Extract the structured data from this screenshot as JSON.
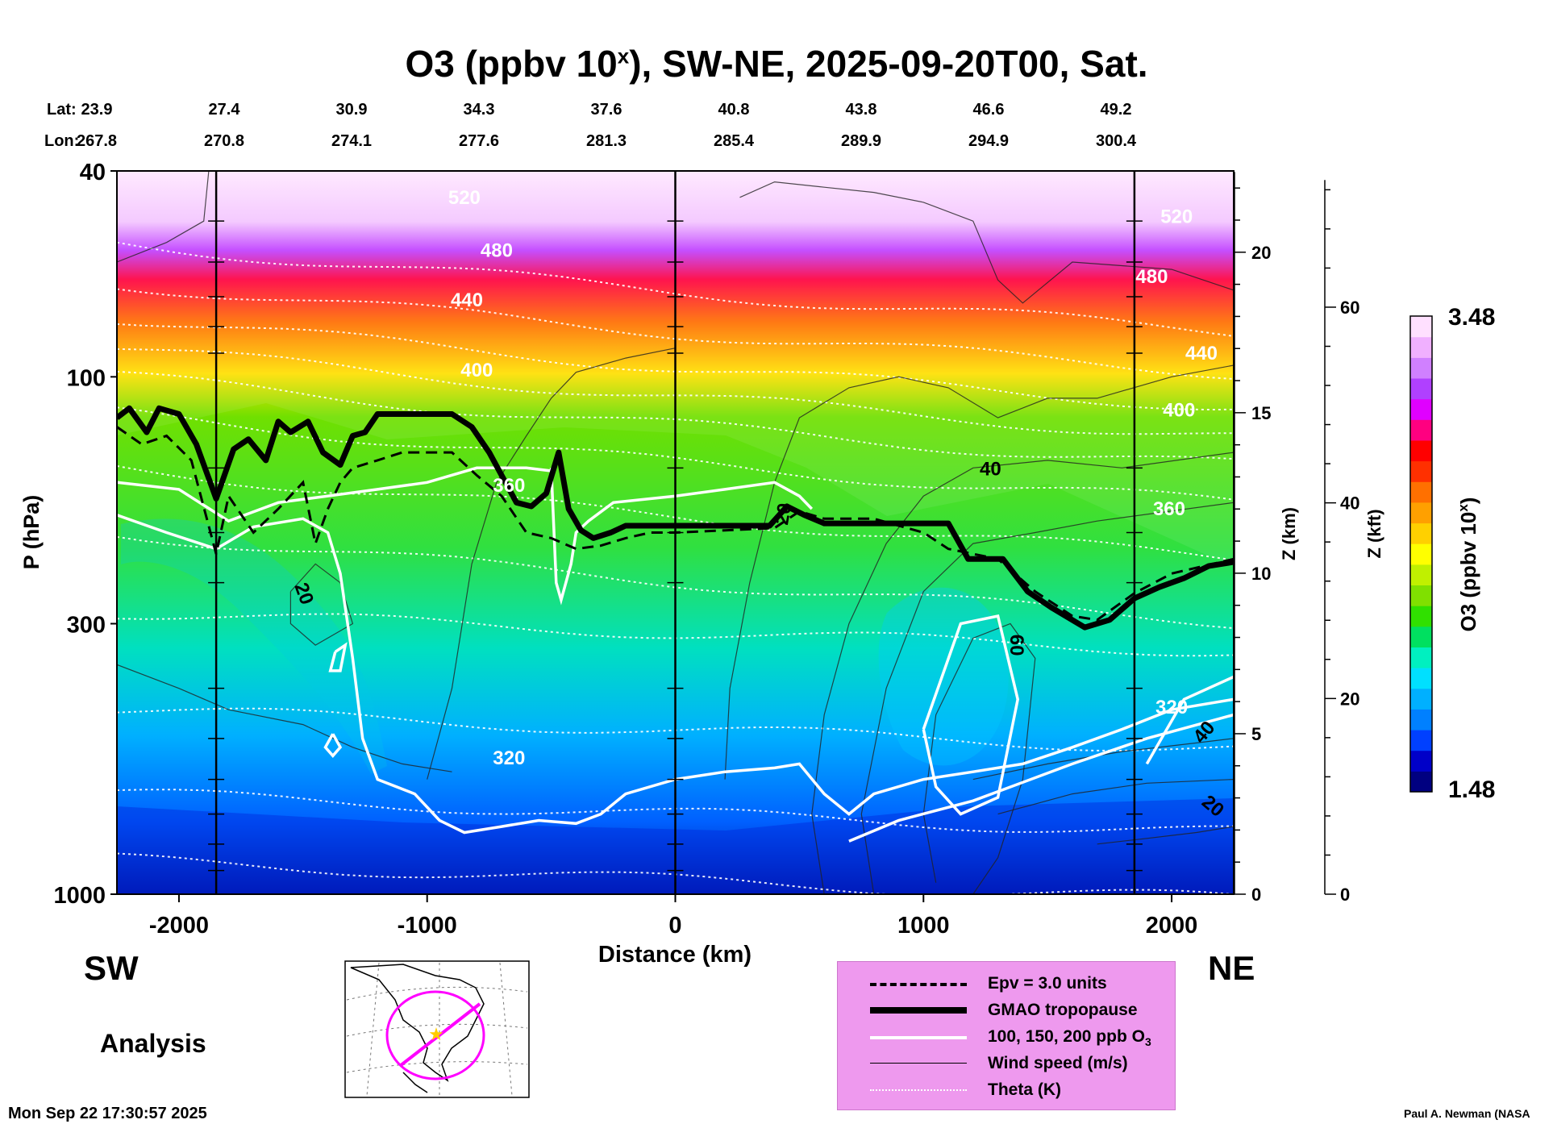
{
  "title": {
    "text": "O3 (ppbv 10",
    "sup": "x",
    "rest": "), SW-NE, 2025-09-20T00, Sat."
  },
  "lat_label": "Lat:",
  "lon_label": "Lon:",
  "lats": [
    "23.9",
    "27.4",
    "30.9",
    "34.3",
    "37.6",
    "40.8",
    "43.8",
    "46.6",
    "49.2"
  ],
  "lons": [
    "267.8",
    "270.8",
    "274.1",
    "277.6",
    "281.3",
    "285.4",
    "289.9",
    "294.9",
    "300.4"
  ],
  "directions": {
    "left": "SW",
    "right": "NE"
  },
  "analysis_label": "Analysis",
  "timestamp": "Mon Sep 22 17:30:57 2025",
  "credit": "Paul A. Newman (NASA",
  "colorbar": {
    "top": "3.48",
    "bottom": "1.48",
    "label": "O3 (ppbv 10",
    "label_sup": "x",
    "label_end": ")",
    "colors": [
      "#000080",
      "#0000c8",
      "#0040ff",
      "#0080ff",
      "#00b0ff",
      "#00e0ff",
      "#00f0c0",
      "#00e060",
      "#30e000",
      "#80e000",
      "#c0f000",
      "#ffff00",
      "#ffd000",
      "#ffa000",
      "#ff7000",
      "#ff3000",
      "#ff0000",
      "#ff0080",
      "#e000ff",
      "#b040ff",
      "#d080ff",
      "#f0b0ff",
      "#ffe0ff"
    ]
  },
  "legend": [
    {
      "style": "dashed",
      "text": "Epv = 3.0 units"
    },
    {
      "style": "thick",
      "text": "GMAO tropopause"
    },
    {
      "style": "white",
      "text": "100, 150, 200 ppb O",
      "sub": "3"
    },
    {
      "style": "thin",
      "text": "Wind speed (m/s)"
    },
    {
      "style": "dotted",
      "text": "Theta (K)"
    }
  ],
  "chart_data": {
    "type": "heatmap",
    "title": "O3 (ppbv 10^x), SW-NE, 2025-09-20T00, Sat.",
    "xlabel": "Distance (km)",
    "ylabel": "P (hPa)",
    "y2label": "Z (km)",
    "y3label": "Z (kft)",
    "colorbar_label": "O3 (ppbv 10^x)",
    "xlim": [
      -2250,
      2250
    ],
    "ylim": [
      1000,
      40
    ],
    "y_scale": "log",
    "x_ticks": [
      -2000,
      -1000,
      0,
      1000,
      2000
    ],
    "y_ticks": [
      40,
      100,
      300,
      1000
    ],
    "z_km_ticks": [
      0,
      5,
      10,
      15,
      20
    ],
    "z_kft_ticks": [
      0,
      20,
      40,
      60
    ],
    "colorbar_range": [
      1.48,
      3.48
    ],
    "vertical_lines_km": [
      -1850,
      0,
      1850
    ],
    "theta_labels": [
      {
        "text": "520",
        "x": -850,
        "p": 45
      },
      {
        "text": "480",
        "x": -720,
        "p": 57
      },
      {
        "text": "440",
        "x": -840,
        "p": 71
      },
      {
        "text": "400",
        "x": -800,
        "p": 97
      },
      {
        "text": "360",
        "x": -670,
        "p": 162
      },
      {
        "text": "320",
        "x": -670,
        "p": 545
      },
      {
        "text": "520",
        "x": 2020,
        "p": 49
      },
      {
        "text": "480",
        "x": 1920,
        "p": 64
      },
      {
        "text": "440",
        "x": 2120,
        "p": 90
      },
      {
        "text": "400",
        "x": 2030,
        "p": 116
      },
      {
        "text": "360",
        "x": 1990,
        "p": 180
      },
      {
        "text": "320",
        "x": 2000,
        "p": 435
      }
    ],
    "wind_labels": [
      {
        "text": "20",
        "x": -1520,
        "p": 265
      },
      {
        "text": "40",
        "x": 1270,
        "p": 155
      },
      {
        "text": "20",
        "x": 460,
        "p": 185
      },
      {
        "text": "60",
        "x": 1350,
        "p": 330
      },
      {
        "text": "40",
        "x": 2150,
        "p": 495
      },
      {
        "text": "20",
        "x": 2150,
        "p": 690
      }
    ],
    "tropopause": [
      {
        "x": -2250,
        "p": 120
      },
      {
        "x": -2200,
        "p": 115
      },
      {
        "x": -2130,
        "p": 128
      },
      {
        "x": -2080,
        "p": 115
      },
      {
        "x": -2000,
        "p": 118
      },
      {
        "x": -1930,
        "p": 135
      },
      {
        "x": -1850,
        "p": 172
      },
      {
        "x": -1780,
        "p": 138
      },
      {
        "x": -1720,
        "p": 132
      },
      {
        "x": -1650,
        "p": 145
      },
      {
        "x": -1600,
        "p": 122
      },
      {
        "x": -1550,
        "p": 128
      },
      {
        "x": -1480,
        "p": 122
      },
      {
        "x": -1420,
        "p": 140
      },
      {
        "x": -1350,
        "p": 148
      },
      {
        "x": -1300,
        "p": 130
      },
      {
        "x": -1250,
        "p": 128
      },
      {
        "x": -1200,
        "p": 118
      },
      {
        "x": -1100,
        "p": 118
      },
      {
        "x": -900,
        "p": 118
      },
      {
        "x": -820,
        "p": 125
      },
      {
        "x": -750,
        "p": 140
      },
      {
        "x": -700,
        "p": 155
      },
      {
        "x": -640,
        "p": 175
      },
      {
        "x": -580,
        "p": 178
      },
      {
        "x": -520,
        "p": 168
      },
      {
        "x": -470,
        "p": 140
      },
      {
        "x": -430,
        "p": 180
      },
      {
        "x": -380,
        "p": 198
      },
      {
        "x": -330,
        "p": 205
      },
      {
        "x": -260,
        "p": 200
      },
      {
        "x": -200,
        "p": 194
      },
      {
        "x": 0,
        "p": 194
      },
      {
        "x": 150,
        "p": 194
      },
      {
        "x": 380,
        "p": 194
      },
      {
        "x": 450,
        "p": 178
      },
      {
        "x": 520,
        "p": 185
      },
      {
        "x": 600,
        "p": 192
      },
      {
        "x": 800,
        "p": 192
      },
      {
        "x": 900,
        "p": 192
      },
      {
        "x": 1100,
        "p": 192
      },
      {
        "x": 1180,
        "p": 225
      },
      {
        "x": 1320,
        "p": 225
      },
      {
        "x": 1420,
        "p": 260
      },
      {
        "x": 1520,
        "p": 280
      },
      {
        "x": 1650,
        "p": 305
      },
      {
        "x": 1750,
        "p": 295
      },
      {
        "x": 1850,
        "p": 268
      },
      {
        "x": 1950,
        "p": 255
      },
      {
        "x": 2050,
        "p": 245
      },
      {
        "x": 2150,
        "p": 232
      },
      {
        "x": 2250,
        "p": 228
      }
    ]
  }
}
